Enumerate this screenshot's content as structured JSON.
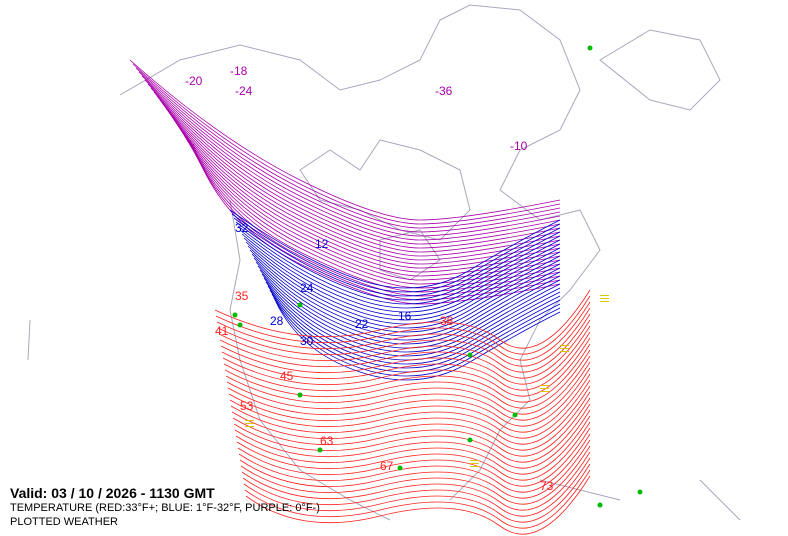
{
  "legend": {
    "valid": "Valid: 03 / 10 / 2026  -  1130 GMT",
    "temperature": "TEMPERATURE (RED:33°F+; BLUE: 1°F-32°F, PURPLE: 0°F-)",
    "weather": "PLOTTED WEATHER"
  },
  "colors": {
    "warm": "#ff2020",
    "cold": "#0000cc",
    "frigid": "#aa00aa",
    "coast": "#a8a8c0",
    "weather": "#00bb00",
    "fog": "#d8c800"
  },
  "contour_labels": [
    {
      "text": "32",
      "band": "cold"
    },
    {
      "text": "28",
      "band": "cold"
    },
    {
      "text": "24",
      "band": "cold"
    },
    {
      "text": "22",
      "band": "cold"
    },
    {
      "text": "16",
      "band": "cold"
    },
    {
      "text": "12",
      "band": "cold"
    },
    {
      "text": "30",
      "band": "cold"
    },
    {
      "text": "-18",
      "band": "frigid"
    },
    {
      "text": "-20",
      "band": "frigid"
    },
    {
      "text": "-24",
      "band": "frigid"
    },
    {
      "text": "-36",
      "band": "frigid"
    },
    {
      "text": "-10",
      "band": "frigid"
    },
    {
      "text": "41",
      "band": "warm"
    },
    {
      "text": "45",
      "band": "warm"
    },
    {
      "text": "53",
      "band": "warm"
    },
    {
      "text": "63",
      "band": "warm"
    },
    {
      "text": "67",
      "band": "warm"
    },
    {
      "text": "73",
      "band": "warm"
    },
    {
      "text": "35",
      "band": "warm"
    },
    {
      "text": "38",
      "band": "warm"
    }
  ]
}
